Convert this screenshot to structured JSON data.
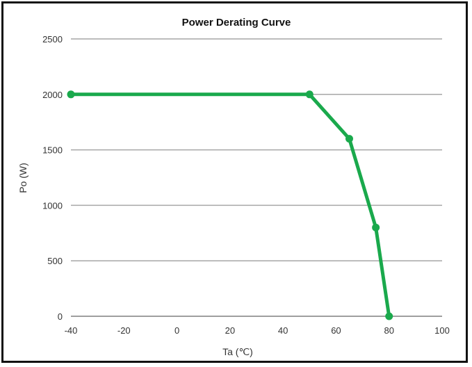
{
  "chart_data": {
    "type": "line",
    "title": "Power  Derating Curve",
    "xlabel": "Ta (℃)",
    "ylabel": "Po (W)",
    "xlim": [
      -40,
      100
    ],
    "ylim": [
      0,
      2500
    ],
    "xticks": [
      -40,
      -20,
      0,
      20,
      40,
      60,
      80,
      100
    ],
    "yticks": [
      0,
      500,
      1000,
      1500,
      2000,
      2500
    ],
    "grid": "horizontal",
    "legend": "none",
    "series": [
      {
        "color": "#1aa94c",
        "x": [
          -40,
          50,
          65,
          75,
          80
        ],
        "y": [
          2000,
          2000,
          1600,
          800,
          0
        ]
      }
    ]
  }
}
